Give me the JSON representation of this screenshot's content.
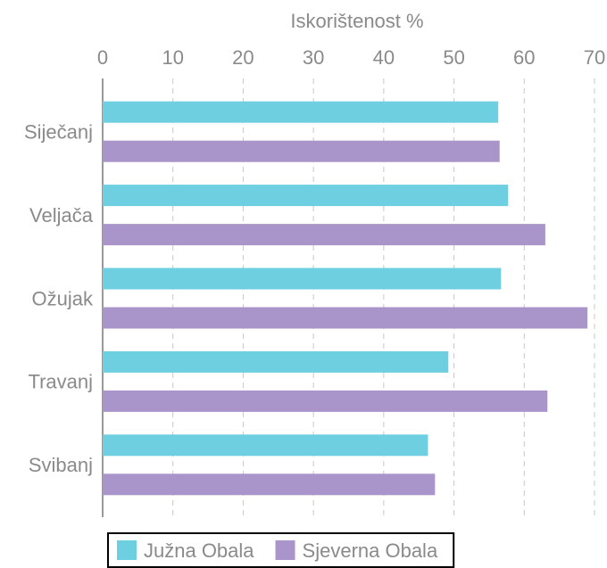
{
  "chart_data": {
    "type": "bar",
    "orientation": "horizontal",
    "x_label": "Iskorištenost %",
    "categories": [
      "Siječanj",
      "Veljača",
      "Ožujak",
      "Travanj",
      "Svibanj"
    ],
    "series": [
      {
        "name": "Južna Obala",
        "color": "#6ecfe0",
        "values": [
          56.3,
          57.7,
          56.7,
          49.2,
          46.3
        ]
      },
      {
        "name": "Sjeverna Obala",
        "color": "#a995c9",
        "values": [
          56.5,
          63.0,
          69.0,
          63.3,
          47.3
        ]
      }
    ],
    "xlim": [
      0,
      70
    ],
    "xticks": [
      0,
      10,
      20,
      30,
      40,
      50,
      60,
      70
    ],
    "grid": true,
    "legend": "bottom"
  }
}
